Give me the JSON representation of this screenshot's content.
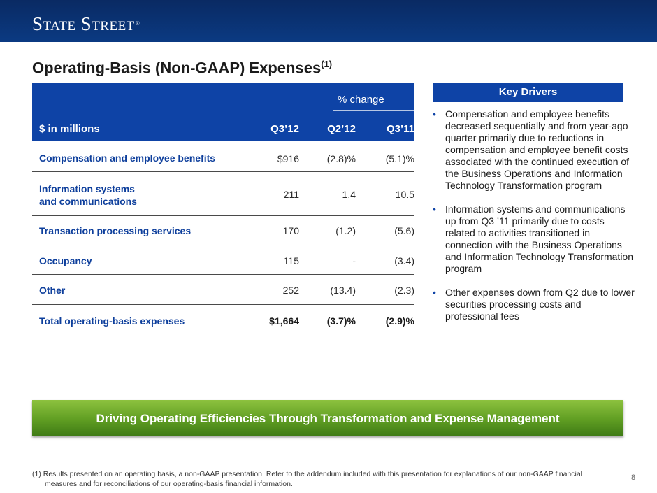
{
  "header": {
    "logo_text": "State Street",
    "logo_mark": "®"
  },
  "title": {
    "text": "Operating-Basis (Non-GAAP) Expenses",
    "sup": "(1)"
  },
  "table": {
    "group_header": "% change",
    "columns": [
      "$ in millions",
      "Q3’12",
      "Q2’12",
      "Q3’11"
    ],
    "rows": [
      {
        "label_line1": "Compensation and employee benefits",
        "label_line2": "",
        "q3_12": "$916",
        "q2_12": "(2.8)%",
        "q3_11": "(5.1)%"
      },
      {
        "label_line1": "Information systems",
        "label_line2": "and communications",
        "q3_12": "211",
        "q2_12": "1.4",
        "q3_11": "10.5"
      },
      {
        "label_line1": "Transaction processing services",
        "label_line2": "",
        "q3_12": "170",
        "q2_12": "(1.2)",
        "q3_11": "(5.6)"
      },
      {
        "label_line1": "Occupancy",
        "label_line2": "",
        "q3_12": "115",
        "q2_12": "-",
        "q3_11": "(3.4)"
      },
      {
        "label_line1": "Other",
        "label_line2": "",
        "q3_12": "252",
        "q2_12": "(13.4)",
        "q3_11": "(2.3)"
      },
      {
        "label_line1": "Total operating-basis expenses",
        "label_line2": "",
        "q3_12": "$1,664",
        "q2_12": "(3.7)%",
        "q3_11": "(2.9)%"
      }
    ]
  },
  "key_drivers": {
    "title": "Key Drivers",
    "bullet_char": "•",
    "items": [
      "Compensation and employee benefits decreased sequentially and from year-ago quarter primarily due to reductions in compensation and employee benefit costs associated with the continued execution of the Business Operations and Information Technology Transformation program",
      "Information systems and communications up from Q3 ’11 primarily due to costs related to activities transitioned in connection with the Business Operations and Information Technology Transformation program",
      "Other expenses down from Q2 due to lower securities processing costs and professional fees"
    ]
  },
  "banner": {
    "text": "Driving Operating Efficiencies Through Transformation and Expense Management"
  },
  "footnote": {
    "line1": "(1) Results presented on an operating basis, a non-GAAP presentation. Refer to the addendum included with this presentation for explanations of our non-GAAP financial",
    "line2": "measures and for reconciliations of our operating-basis financial information."
  },
  "page_number": "8",
  "colors": {
    "brand_navy": "#0b3a82",
    "table_blue": "#0e43a6",
    "banner_green": "#5f9d22"
  }
}
